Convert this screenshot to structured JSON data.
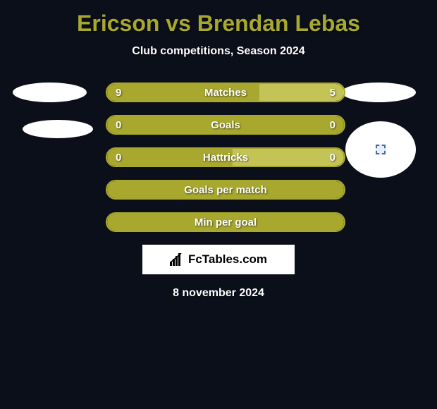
{
  "title": "Ericson vs Brendan Lebas",
  "subtitle": "Club competitions, Season 2024",
  "date": "8 november 2024",
  "logo_text": "FcTables.com",
  "colors": {
    "background": "#0a0f1a",
    "title_color": "#a8a82e",
    "text_color": "#ffffff",
    "bar_olive": "#a8a82e",
    "bar_khaki": "#c4c456"
  },
  "bars": [
    {
      "label": "Matches",
      "left_value": "9",
      "right_value": "5",
      "left_width_pct": 64.3,
      "right_width_pct": 35.7,
      "left_color": "#a8a82e",
      "right_color": "#c4c456",
      "border_color": "#a8a82e",
      "show_values": true
    },
    {
      "label": "Goals",
      "left_value": "0",
      "right_value": "0",
      "left_width_pct": 50,
      "right_width_pct": 50,
      "left_color": "#a8a82e",
      "right_color": "#a8a82e",
      "border_color": "#a8a82e",
      "show_values": true
    },
    {
      "label": "Hattricks",
      "left_value": "0",
      "right_value": "0",
      "left_width_pct": 53,
      "right_width_pct": 47,
      "left_color": "#a8a82e",
      "right_color": "#c4c456",
      "border_color": "#a8a82e",
      "show_values": true
    },
    {
      "label": "Goals per match",
      "left_value": "",
      "right_value": "",
      "left_width_pct": 0,
      "right_width_pct": 0,
      "left_color": "#a8a82e",
      "right_color": "#a8a82e",
      "border_color": "#a8a82e",
      "show_values": false,
      "empty": true
    },
    {
      "label": "Min per goal",
      "left_value": "",
      "right_value": "",
      "left_width_pct": 0,
      "right_width_pct": 0,
      "left_color": "#a8a82e",
      "right_color": "#a8a82e",
      "border_color": "#a8a82e",
      "show_values": false,
      "empty": true
    }
  ]
}
